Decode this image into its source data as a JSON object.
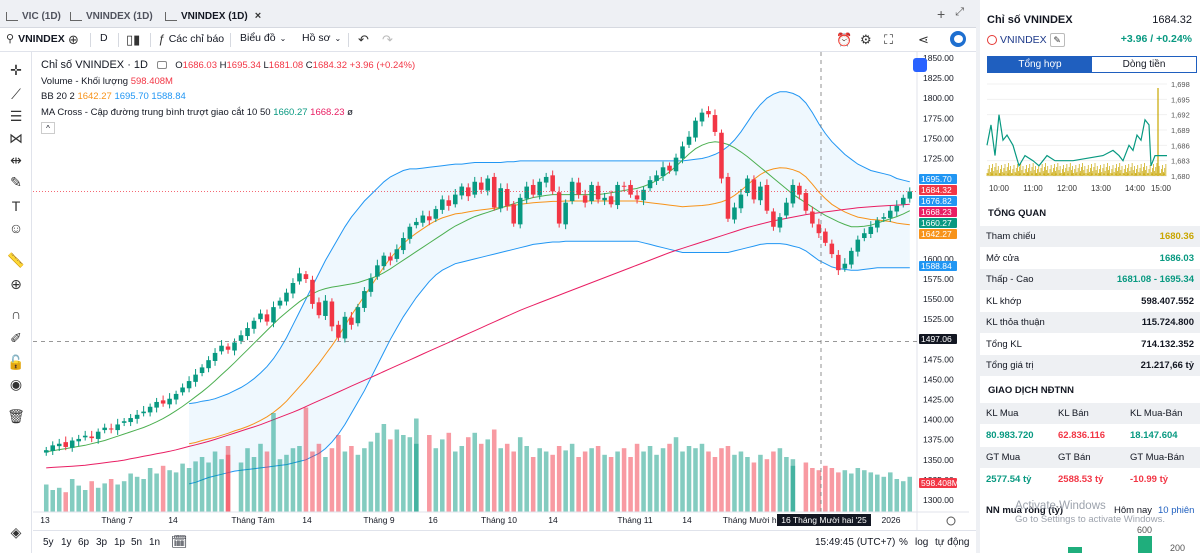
{
  "tabs": [
    {
      "label": "VIC (1D)",
      "active": false
    },
    {
      "label": "VNINDEX (1D)",
      "active": false
    },
    {
      "label": "VNINDEX (1D)",
      "active": true
    }
  ],
  "tab_close": "×",
  "tabbar_icons": {
    "add": "+",
    "expand": "⤢"
  },
  "toolbar": {
    "symbol": "VNINDEX",
    "interval": "D",
    "indicators_label": "Các chỉ báo",
    "chart_type_label": "Biểu đồ",
    "profile_label": "Hồ sơ"
  },
  "legend": {
    "title": "Chỉ số VNINDEX · 1D",
    "ohlc": {
      "O": "1686.03",
      "H": "1695.34",
      "L": "1681.08",
      "C": "1684.32",
      "change": "+3.96 (+0.24%)"
    },
    "volume_label": "Volume - Khối lượng",
    "volume_value": "598.408M",
    "bb_label": "BB 20 2",
    "bb_values": [
      "1642.27",
      "1695.70",
      "1588.84"
    ],
    "ma_label": "MA Cross - Cập đường trung bình trượt giao cắt 10 50",
    "ma_values": [
      "1660.27",
      "1668.23"
    ],
    "ma_extra": "ø",
    "collapse": "^"
  },
  "price_axis": {
    "ticks": [
      "1850.00",
      "1825.00",
      "1800.00",
      "1775.00",
      "1750.00",
      "1725.00",
      "1700.00",
      "1600.00",
      "1575.00",
      "1550.00",
      "1525.00",
      "1475.00",
      "1450.00",
      "1425.00",
      "1400.00",
      "1375.00",
      "1350.00",
      "1325.00",
      "1300.00"
    ],
    "labels": [
      {
        "text": "1695.70",
        "color": "#2196f3"
      },
      {
        "text": "1684.32",
        "color": "#f23645"
      },
      {
        "text": "1676.82",
        "color": "#2196f3"
      },
      {
        "text": "1668.23",
        "color": "#e91e63"
      },
      {
        "text": "1660.27",
        "color": "#089981"
      },
      {
        "text": "1642.27",
        "color": "#f7931a"
      },
      {
        "text": "1588.84",
        "color": "#2196f3"
      },
      {
        "text": "1497.06",
        "color": "#131722"
      },
      {
        "text": "598.408M",
        "color": "#f23645"
      }
    ]
  },
  "time_axis": {
    "ticks": [
      "13",
      "Tháng 7",
      "14",
      "Tháng Tám",
      "14",
      "Tháng 9",
      "16",
      "Tháng 10",
      "14",
      "Tháng 11",
      "14",
      "Tháng Mười hai",
      "2026"
    ],
    "crosshair_label": "16 Tháng Mười hai '25"
  },
  "bottombar": {
    "ranges": [
      "5y",
      "1y",
      "6p",
      "3p",
      "1p",
      "5n",
      "1n"
    ],
    "clock": "15:49:45 (UTC+7)",
    "options": [
      "%",
      "log",
      "tự động"
    ]
  },
  "right_panel": {
    "title": "Chỉ số VNINDEX",
    "price": "1684.32",
    "symbol": "VNINDEX",
    "change": "+3.96 / +0.24%",
    "tabs": [
      "Tổng hợp",
      "Dòng tiền"
    ],
    "mini_chart": {
      "y_ticks": [
        "1,698",
        "1,695",
        "1,692",
        "1,689",
        "1,686",
        "1,683",
        "1,680"
      ],
      "x_ticks": [
        "10:00",
        "11:00",
        "12:00",
        "13:00",
        "14:00",
        "15:00"
      ]
    },
    "overview_title": "TỔNG QUAN",
    "overview": [
      {
        "label": "Tham chiếu",
        "value": "1680.36",
        "color": "#c9a600"
      },
      {
        "label": "Mở cửa",
        "value": "1686.03",
        "color": "#089981"
      },
      {
        "label": "Thấp - Cao",
        "value": "1681.08 - 1695.34",
        "color": "#089981"
      },
      {
        "label": "KL khớp",
        "value": "598.407.552",
        "color": "#131722"
      },
      {
        "label": "KL thỏa thuận",
        "value": "115.724.800",
        "color": "#131722"
      },
      {
        "label": "Tổng KL",
        "value": "714.132.352",
        "color": "#131722"
      },
      {
        "label": "Tổng giá trị",
        "value": "21.217,66 tỷ",
        "color": "#131722"
      }
    ],
    "ntnn_title": "GIAO DỊCH NĐTNN",
    "ntnn_head1": [
      "KL Mua",
      "KL Bán",
      "KL Mua-Bán"
    ],
    "ntnn_vals1": [
      {
        "text": "80.983.720",
        "color": "#089981"
      },
      {
        "text": "62.836.116",
        "color": "#f23645"
      },
      {
        "text": "18.147.604",
        "color": "#089981"
      }
    ],
    "ntnn_head2": [
      "GT Mua",
      "GT Bán",
      "GT Mua-Bán"
    ],
    "ntnn_vals2": [
      {
        "text": "2577.54 tỷ",
        "color": "#089981"
      },
      {
        "text": "2588.53 tỷ",
        "color": "#f23645"
      },
      {
        "text": "-10.99 tỷ",
        "color": "#f23645"
      }
    ],
    "nn_label": "NN mua ròng (tỷ)",
    "nn_today": "Hôm nay",
    "nn_sessions": "10 phiên",
    "nn_bar_ticks": [
      "600",
      "200"
    ]
  },
  "watermark": {
    "line1": "Activate Windows",
    "line2": "Go to Settings to activate Windows."
  },
  "chart_data": {
    "type": "candlestick",
    "title": "Chỉ số VNINDEX · 1D",
    "ylim": [
      1300,
      1850
    ],
    "x_labels": [
      "13",
      "Tháng 7",
      "14",
      "Tháng Tám",
      "14",
      "Tháng 9",
      "16",
      "Tháng 10",
      "14",
      "Tháng 11",
      "14",
      "Tháng Mười hai",
      "2026"
    ],
    "close": [
      1362,
      1368,
      1370,
      1366,
      1374,
      1376,
      1380,
      1377,
      1385,
      1390,
      1388,
      1394,
      1398,
      1402,
      1406,
      1410,
      1416,
      1422,
      1420,
      1426,
      1432,
      1440,
      1448,
      1456,
      1465,
      1474,
      1483,
      1492,
      1487,
      1496,
      1505,
      1514,
      1523,
      1532,
      1522,
      1540,
      1548,
      1558,
      1570,
      1582,
      1575,
      1544,
      1530,
      1548,
      1516,
      1502,
      1528,
      1518,
      1540,
      1560,
      1576,
      1592,
      1604,
      1598,
      1612,
      1626,
      1640,
      1646,
      1654,
      1648,
      1662,
      1674,
      1666,
      1680,
      1690,
      1678,
      1696,
      1686,
      1700,
      1664,
      1688,
      1666,
      1644,
      1676,
      1690,
      1680,
      1696,
      1702,
      1684,
      1644,
      1670,
      1696,
      1680,
      1670,
      1692,
      1674,
      1676,
      1668,
      1692,
      1690,
      1680,
      1674,
      1686,
      1698,
      1704,
      1714,
      1710,
      1726,
      1740,
      1752,
      1772,
      1782,
      1780,
      1758,
      1700,
      1650,
      1664,
      1680,
      1700,
      1674,
      1690,
      1660,
      1640,
      1652,
      1670,
      1692,
      1680,
      1660,
      1644,
      1632,
      1620,
      1606,
      1586,
      1594,
      1610,
      1624,
      1632,
      1640,
      1648,
      1652,
      1660,
      1666,
      1676,
      1684
    ],
    "bb_upper": [
      1420,
      1421,
      1423,
      1424,
      1426,
      1429,
      1432,
      1436,
      1440,
      1445,
      1451,
      1458,
      1466,
      1476,
      1488,
      1502,
      1518,
      1534,
      1550,
      1566,
      1582,
      1598,
      1612,
      1626,
      1640,
      1652,
      1662,
      1672,
      1680,
      1688,
      1696,
      1702,
      1706,
      1710,
      1712,
      1712,
      1713,
      1714,
      1715,
      1716,
      1717,
      1718,
      1718,
      1719,
      1720,
      1720,
      1720,
      1720,
      1720,
      1721,
      1721,
      1722,
      1722,
      1722,
      1722,
      1722,
      1722,
      1722,
      1722,
      1722,
      1722,
      1722,
      1722,
      1722,
      1722,
      1722,
      1722,
      1722,
      1722,
      1722,
      1722,
      1722,
      1722,
      1722,
      1722,
      1722,
      1722,
      1723,
      1724,
      1725,
      1727,
      1730,
      1734,
      1740,
      1748,
      1758,
      1770,
      1782,
      1792,
      1800,
      1805,
      1808,
      1808,
      1806,
      1802,
      1794,
      1782,
      1768,
      1756,
      1746,
      1738,
      1730,
      1724,
      1718,
      1714,
      1710,
      1708,
      1706,
      1704,
      1700,
      1698,
      1696
    ],
    "bb_lower": [
      1320,
      1322,
      1325,
      1328,
      1330,
      1332,
      1334,
      1336,
      1337,
      1338,
      1339,
      1340,
      1341,
      1342,
      1343,
      1344,
      1346,
      1348,
      1350,
      1354,
      1358,
      1364,
      1372,
      1382,
      1394,
      1408,
      1422,
      1436,
      1452,
      1468,
      1484,
      1500,
      1514,
      1528,
      1540,
      1552,
      1562,
      1572,
      1580,
      1586,
      1590,
      1594,
      1596,
      1598,
      1600,
      1602,
      1604,
      1606,
      1608,
      1610,
      1612,
      1614,
      1616,
      1618,
      1619,
      1620,
      1621,
      1621,
      1622,
      1622,
      1622,
      1622,
      1622,
      1622,
      1622,
      1622,
      1622,
      1622,
      1622,
      1622,
      1620,
      1618,
      1616,
      1614,
      1612,
      1610,
      1608,
      1608,
      1608,
      1608,
      1608,
      1608,
      1608,
      1608,
      1610,
      1612,
      1614,
      1616,
      1618,
      1619,
      1619,
      1619,
      1618,
      1616,
      1614,
      1610,
      1604,
      1598,
      1594,
      1590,
      1588,
      1587,
      1586,
      1586,
      1587,
      1588,
      1589,
      1589,
      1589,
      1589,
      1589,
      1589
    ],
    "ma10": [
      1360,
      1362,
      1364,
      1366,
      1368,
      1371,
      1374,
      1378,
      1382,
      1386,
      1390,
      1395,
      1401,
      1408,
      1416,
      1425,
      1434,
      1444,
      1455,
      1466,
      1478,
      1490,
      1502,
      1514,
      1526,
      1536,
      1546,
      1554,
      1560,
      1564,
      1566,
      1568,
      1570,
      1574,
      1578,
      1584,
      1592,
      1600,
      1608,
      1616,
      1624,
      1632,
      1640,
      1646,
      1652,
      1656,
      1660,
      1664,
      1668,
      1672,
      1676,
      1678,
      1680,
      1680,
      1680,
      1680,
      1680,
      1680,
      1682,
      1684,
      1686,
      1688,
      1692,
      1698,
      1706,
      1716,
      1728,
      1738,
      1744,
      1746,
      1744,
      1738,
      1730,
      1720,
      1710,
      1700,
      1690,
      1680,
      1672,
      1664,
      1656,
      1650,
      1644,
      1640,
      1640,
      1642,
      1646,
      1650,
      1654,
      1660
    ],
    "ma50": [
      1340,
      1341,
      1342,
      1343,
      1345,
      1347,
      1349,
      1352,
      1355,
      1358,
      1361,
      1365,
      1369,
      1373,
      1378,
      1383,
      1388,
      1393,
      1399,
      1405,
      1411,
      1418,
      1425,
      1432,
      1439,
      1446,
      1453,
      1460,
      1467,
      1474,
      1481,
      1488,
      1495,
      1502,
      1509,
      1516,
      1523,
      1530,
      1537,
      1543,
      1549,
      1555,
      1561,
      1567,
      1573,
      1579,
      1585,
      1591,
      1597,
      1603,
      1609,
      1614,
      1619,
      1624,
      1629,
      1634,
      1639,
      1643,
      1647,
      1650,
      1653,
      1656,
      1658,
      1660,
      1662,
      1664,
      1665,
      1666,
      1667,
      1668
    ],
    "volume_relative": [
      0.25,
      0.2,
      0.22,
      0.18,
      0.3,
      0.24,
      0.2,
      0.28,
      0.22,
      0.26,
      0.3,
      0.25,
      0.28,
      0.35,
      0.32,
      0.3,
      0.4,
      0.35,
      0.42,
      0.38,
      0.36,
      0.44,
      0.4,
      0.46,
      0.5,
      0.45,
      0.55,
      0.48,
      0.6,
      0.52,
      0.45,
      0.58,
      0.5,
      0.62,
      0.55,
      0.9,
      0.48,
      0.52,
      0.58,
      0.6,
      0.95,
      0.55,
      0.62,
      0.5,
      0.58,
      0.7,
      0.55,
      0.6,
      0.52,
      0.58,
      0.64,
      0.72,
      0.8,
      0.66,
      0.75,
      0.7,
      0.68,
      0.85,
      0.62,
      0.7,
      0.58,
      0.66,
      0.72,
      0.55,
      0.6,
      0.68,
      0.72,
      0.62,
      0.66,
      0.75,
      0.58,
      0.62,
      0.55,
      0.68,
      0.6,
      0.5,
      0.58,
      0.55,
      0.52,
      0.6,
      0.56,
      0.62,
      0.5,
      0.55,
      0.58,
      0.6,
      0.52,
      0.5,
      0.55,
      0.58,
      0.5,
      0.62,
      0.55,
      0.6,
      0.52,
      0.58,
      0.62,
      0.68,
      0.55,
      0.6,
      0.58,
      0.62,
      0.55,
      0.5,
      0.58,
      0.6,
      0.52,
      0.55,
      0.5,
      0.45,
      0.52,
      0.48,
      0.55,
      0.58,
      0.5,
      0.42,
      0.48,
      0.45,
      0.4,
      0.38,
      0.42,
      0.4,
      0.36,
      0.38,
      0.35,
      0.4,
      0.38,
      0.36,
      0.34,
      0.32,
      0.36,
      0.3,
      0.28,
      0.32
    ]
  }
}
